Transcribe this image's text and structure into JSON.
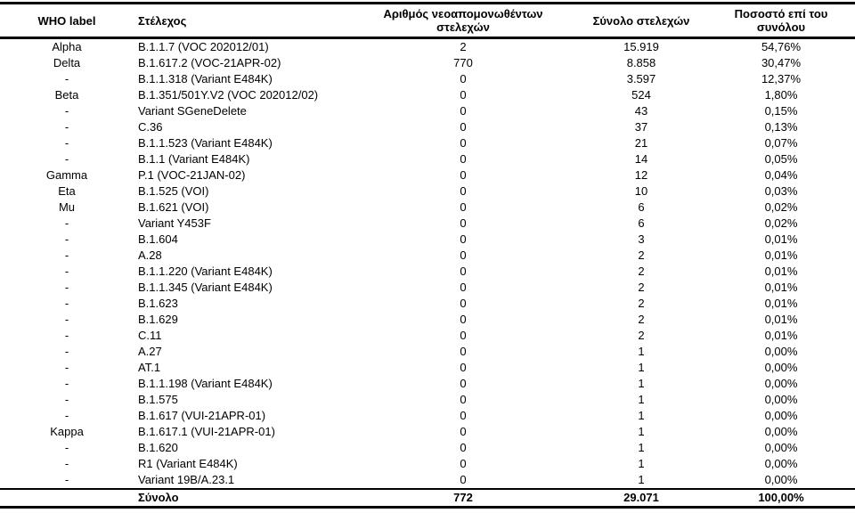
{
  "table": {
    "columns": [
      {
        "label": "WHO label"
      },
      {
        "label": "Στέλεχος"
      },
      {
        "label": "Αριθμός νεοαπομονωθέντων στελεχών"
      },
      {
        "label": "Σύνολο στελεχών"
      },
      {
        "label": "Ποσοστό επί του συνόλου"
      }
    ],
    "rows": [
      [
        "Alpha",
        "B.1.1.7 (VOC 202012/01)",
        "2",
        "15.919",
        "54,76%"
      ],
      [
        "Delta",
        "B.1.617.2 (VOC-21APR-02)",
        "770",
        "8.858",
        "30,47%"
      ],
      [
        "-",
        "B.1.1.318 (Variant E484K)",
        "0",
        "3.597",
        "12,37%"
      ],
      [
        "Beta",
        "B.1.351/501Y.V2 (VOC 202012/02)",
        "0",
        "524",
        "1,80%"
      ],
      [
        "-",
        "Variant SGeneDelete",
        "0",
        "43",
        "0,15%"
      ],
      [
        "-",
        "C.36",
        "0",
        "37",
        "0,13%"
      ],
      [
        "-",
        "B.1.1.523 (Variant E484K)",
        "0",
        "21",
        "0,07%"
      ],
      [
        "-",
        "B.1.1 (Variant E484K)",
        "0",
        "14",
        "0,05%"
      ],
      [
        "Gamma",
        "P.1 (VOC-21JAN-02)",
        "0",
        "12",
        "0,04%"
      ],
      [
        "Eta",
        "B.1.525 (VOI)",
        "0",
        "10",
        "0,03%"
      ],
      [
        "Mu",
        "B.1.621 (VOI)",
        "0",
        "6",
        "0,02%"
      ],
      [
        "-",
        "Variant Y453F",
        "0",
        "6",
        "0,02%"
      ],
      [
        "-",
        "B.1.604",
        "0",
        "3",
        "0,01%"
      ],
      [
        "-",
        "A.28",
        "0",
        "2",
        "0,01%"
      ],
      [
        "-",
        "B.1.1.220 (Variant E484K)",
        "0",
        "2",
        "0,01%"
      ],
      [
        "-",
        "B.1.1.345 (Variant E484K)",
        "0",
        "2",
        "0,01%"
      ],
      [
        "-",
        "B.1.623",
        "0",
        "2",
        "0,01%"
      ],
      [
        "-",
        "B.1.629",
        "0",
        "2",
        "0,01%"
      ],
      [
        "-",
        "C.11",
        "0",
        "2",
        "0,01%"
      ],
      [
        "-",
        "A.27",
        "0",
        "1",
        "0,00%"
      ],
      [
        "-",
        "AT.1",
        "0",
        "1",
        "0,00%"
      ],
      [
        "-",
        "B.1.1.198 (Variant E484K)",
        "0",
        "1",
        "0,00%"
      ],
      [
        "-",
        "B.1.575",
        "0",
        "1",
        "0,00%"
      ],
      [
        "-",
        "B.1.617 (VUI-21APR-01)",
        "0",
        "1",
        "0,00%"
      ],
      [
        "Kappa",
        "B.1.617.1 (VUI-21APR-01)",
        "0",
        "1",
        "0,00%"
      ],
      [
        "-",
        "B.1.620",
        "0",
        "1",
        "0,00%"
      ],
      [
        "-",
        "R1 (Variant E484K)",
        "0",
        "1",
        "0,00%"
      ],
      [
        "-",
        "Variant 19B/A.23.1",
        "0",
        "1",
        "0,00%"
      ]
    ],
    "total_row": {
      "label": "Σύνολο",
      "new_isolates": "772",
      "total_strains": "29.071",
      "percent": "100,00%"
    }
  },
  "colors": {
    "text": "#000000",
    "background": "#ffffff",
    "border": "#000000"
  }
}
